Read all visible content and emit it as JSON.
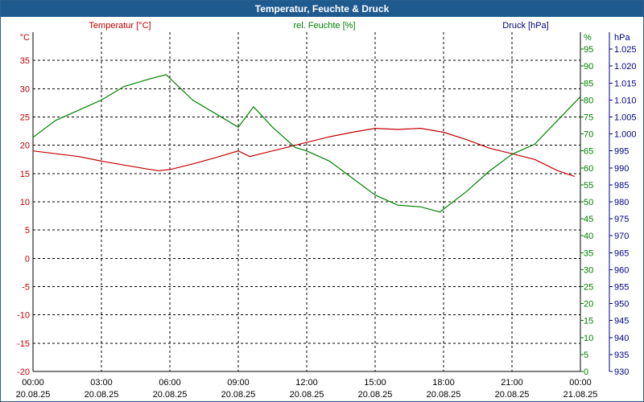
{
  "title": "Temperatur, Feuchte & Druck",
  "colors": {
    "temperature": "#c00000",
    "humidity": "#008000",
    "pressure": "#000080",
    "titlebar": "#1f5a8f",
    "grid": "#000000"
  },
  "chart_data": {
    "type": "line",
    "title": "Temperatur, Feuchte & Druck",
    "grid": true,
    "x_range": [
      "20.08.25 00:00",
      "21.08.25 00:00"
    ],
    "x_tick_labels": [
      {
        "time": "00:00",
        "date": "20.08.25"
      },
      {
        "time": "03:00",
        "date": "20.08.25"
      },
      {
        "time": "06:00",
        "date": "20.08.25"
      },
      {
        "time": "09:00",
        "date": "20.08.25"
      },
      {
        "time": "12:00",
        "date": "20.08.25"
      },
      {
        "time": "15:00",
        "date": "20.08.25"
      },
      {
        "time": "18:00",
        "date": "20.08.25"
      },
      {
        "time": "21:00",
        "date": "20.08.25"
      },
      {
        "time": "00:00",
        "date": "21.08.25"
      }
    ],
    "axes": {
      "temperature": {
        "label": "Temperatur [°C]",
        "unit": "°C",
        "min": -20,
        "max": 40,
        "ticks": [
          35,
          30,
          25,
          20,
          15,
          10,
          5,
          0,
          -5,
          -10,
          -15,
          -20
        ]
      },
      "humidity": {
        "label": "rel. Feuchte [%]",
        "unit": "%",
        "min": 0,
        "max": 100,
        "ticks": [
          95,
          90,
          85,
          80,
          75,
          70,
          65,
          60,
          55,
          50,
          45,
          40,
          35,
          30,
          25,
          20,
          15,
          10,
          5,
          0
        ]
      },
      "pressure": {
        "label": "Druck [hPa]",
        "unit": "hPa",
        "min": 930,
        "max": 1030,
        "ticks": [
          "1.025",
          "1.020",
          "1.015",
          "1.010",
          "1.005",
          "1.000",
          "995",
          "990",
          "985",
          "980",
          "975",
          "970",
          "965",
          "960",
          "955",
          "950",
          "945",
          "940",
          "935",
          "930"
        ]
      }
    },
    "series": [
      {
        "name": "Temperatur [°C]",
        "axis": "temperature",
        "x": [
          "20.08.25 00:00",
          "20.08.25 01:00",
          "20.08.25 02:00",
          "20.08.25 03:00",
          "20.08.25 04:00",
          "20.08.25 05:00",
          "20.08.25 05:30",
          "20.08.25 06:00",
          "20.08.25 07:00",
          "20.08.25 08:00",
          "20.08.25 09:00",
          "20.08.25 09:30",
          "20.08.25 10:00",
          "20.08.25 11:00",
          "20.08.25 12:00",
          "20.08.25 13:00",
          "20.08.25 14:00",
          "20.08.25 15:00",
          "20.08.25 16:00",
          "20.08.25 17:00",
          "20.08.25 18:00",
          "20.08.25 19:00",
          "20.08.25 20:00",
          "20.08.25 21:00",
          "20.08.25 22:00",
          "20.08.25 23:00",
          "20.08.25 23:45"
        ],
        "y": [
          19,
          18.5,
          18,
          17.2,
          16.5,
          15.8,
          15.5,
          15.7,
          16.7,
          17.8,
          19,
          18,
          18.5,
          19.5,
          20.5,
          21.5,
          22.3,
          23,
          22.8,
          23,
          22.3,
          21,
          19.5,
          18.5,
          17.5,
          15.5,
          14.5
        ]
      },
      {
        "name": "rel. Feuchte [%]",
        "axis": "humidity",
        "x": [
          "20.08.25 00:00",
          "20.08.25 01:00",
          "20.08.25 02:00",
          "20.08.25 03:00",
          "20.08.25 04:00",
          "20.08.25 05:00",
          "20.08.25 05:50",
          "20.08.25 07:00",
          "20.08.25 08:00",
          "20.08.25 09:00",
          "20.08.25 09:40",
          "20.08.25 10:30",
          "20.08.25 11:30",
          "20.08.25 12:00",
          "20.08.25 13:00",
          "20.08.25 14:00",
          "20.08.25 15:00",
          "20.08.25 16:00",
          "20.08.25 17:00",
          "20.08.25 17:50",
          "20.08.25 19:00",
          "20.08.25 20:00",
          "20.08.25 21:00",
          "20.08.25 22:00",
          "20.08.25 23:00",
          "20.08.25 24:00"
        ],
        "y": [
          69,
          74,
          77,
          80,
          84,
          86,
          87.5,
          80,
          76,
          72,
          78,
          72,
          66,
          65,
          62,
          57,
          52,
          49,
          48.5,
          47,
          53,
          59,
          64,
          67,
          74,
          81
        ]
      }
    ]
  }
}
